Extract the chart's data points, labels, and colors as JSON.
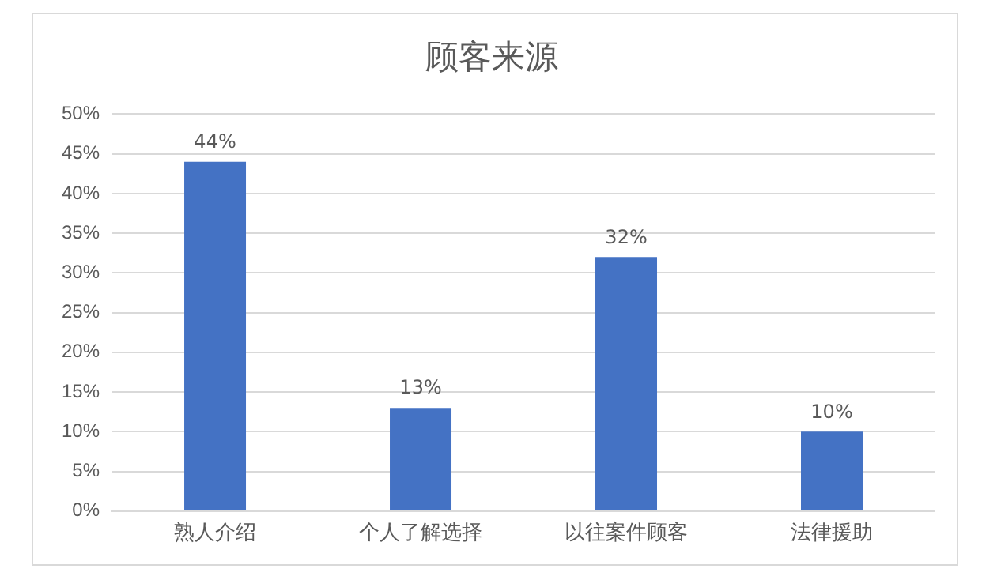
{
  "chart_data": {
    "type": "bar",
    "title": "顾客来源",
    "categories": [
      "熟人介绍",
      "个人了解选择",
      "以往案件顾客",
      "法律援助"
    ],
    "values": [
      44,
      13,
      32,
      10
    ],
    "color": "#4472c4",
    "value_labels": [
      "44%",
      "13%",
      "32%",
      "10%"
    ],
    "ylim": [
      0,
      50
    ],
    "yticks": [
      {
        "value": 0,
        "label": "0%"
      },
      {
        "value": 5,
        "label": "5%"
      },
      {
        "value": 10,
        "label": "10%"
      },
      {
        "value": 15,
        "label": "15%"
      },
      {
        "value": 20,
        "label": "20%"
      },
      {
        "value": 25,
        "label": "25%"
      },
      {
        "value": 30,
        "label": "30%"
      },
      {
        "value": 35,
        "label": "35%"
      },
      {
        "value": 40,
        "label": "40%"
      },
      {
        "value": 45,
        "label": "45%"
      },
      {
        "value": 50,
        "label": "50%"
      }
    ],
    "grid": "y",
    "legend": false
  }
}
